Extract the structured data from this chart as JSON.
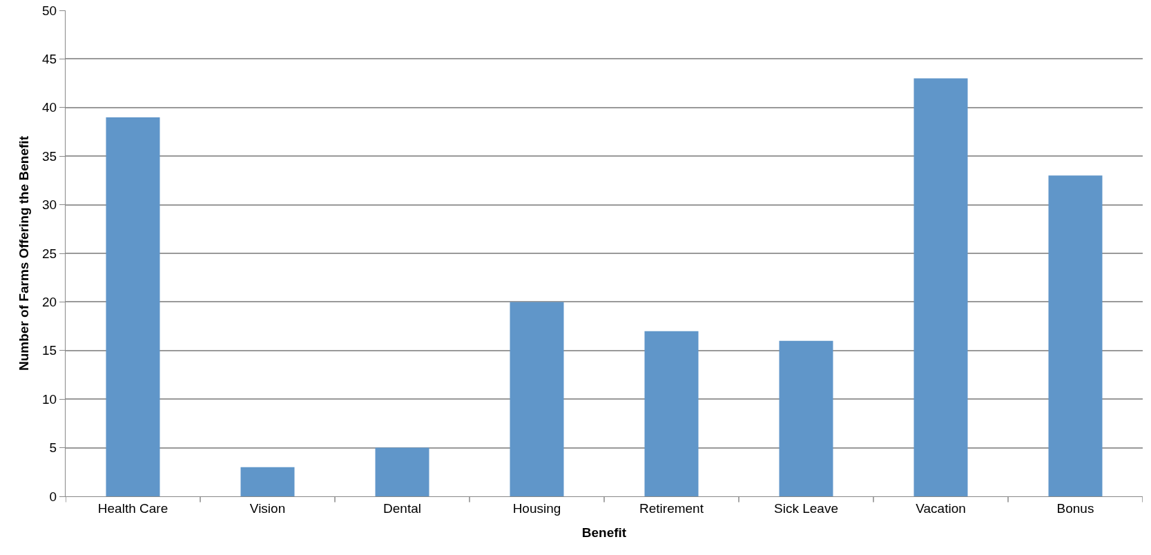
{
  "chart_data": {
    "type": "bar",
    "xlabel": "Benefit",
    "ylabel": "Number of Farms Offering the Benefit",
    "categories": [
      "Health Care",
      "Vision",
      "Dental",
      "Housing",
      "Retirement",
      "Sick Leave",
      "Vacation",
      "Bonus"
    ],
    "values": [
      39,
      3,
      5,
      20,
      17,
      16,
      43,
      33
    ],
    "color": "#6096c9",
    "ylim": [
      0,
      50
    ],
    "yticks": [
      0,
      5,
      10,
      15,
      20,
      25,
      30,
      35,
      40,
      45,
      50
    ],
    "grid": "y",
    "legend": false
  }
}
